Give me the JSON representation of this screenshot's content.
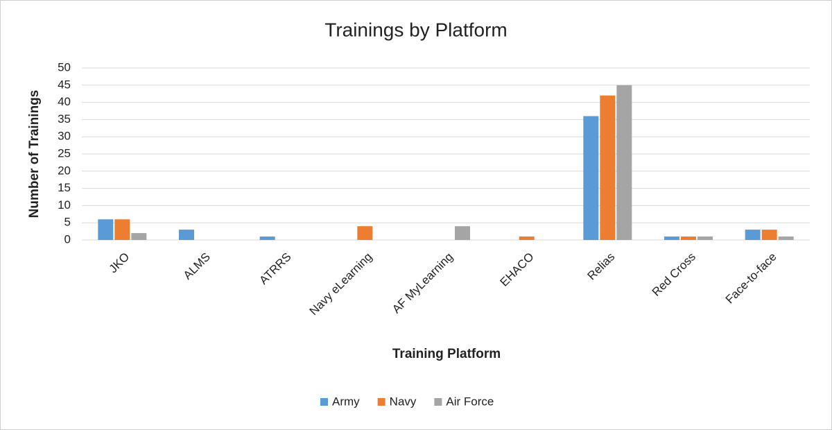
{
  "chart_data": {
    "type": "bar",
    "title": "Trainings by Platform",
    "x_label": "Training Platform",
    "y_label": "Number of Trainings",
    "categories": [
      "JKO",
      "ALMS",
      "ATRRS",
      "Navy eLearning",
      "AF MyLearning",
      "EHACO",
      "Relias",
      "Red Cross",
      "Face-to-face"
    ],
    "series": [
      {
        "name": "Army",
        "color": "#5b9bd5",
        "values": [
          6,
          3,
          1,
          0,
          0,
          0,
          36,
          1,
          3
        ]
      },
      {
        "name": "Navy",
        "color": "#ed7d31",
        "values": [
          6,
          0,
          0,
          4,
          0,
          1,
          42,
          1,
          3
        ]
      },
      {
        "name": "Air Force",
        "color": "#a5a5a5",
        "values": [
          2,
          0,
          0,
          0,
          4,
          0,
          45,
          1,
          1
        ]
      }
    ],
    "ylim": [
      0,
      50
    ],
    "yticks": [
      0,
      5,
      10,
      15,
      20,
      25,
      30,
      35,
      40,
      45,
      50
    ],
    "grid": true,
    "legend": "bottom"
  }
}
